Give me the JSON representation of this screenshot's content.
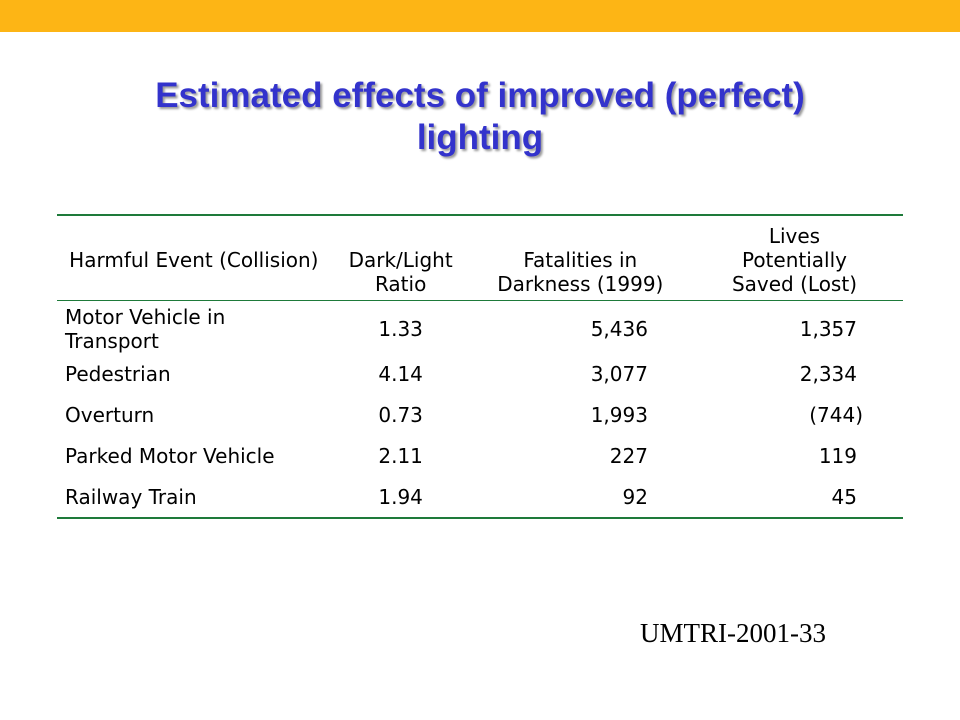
{
  "slide": {
    "title_line1": "Estimated effects of improved (perfect)",
    "title_line2": "lighting",
    "accent_color": "#FDB515",
    "title_color": "#3333CC",
    "rule_color": "#1E7A3A",
    "source": "UMTRI-2001-33"
  },
  "table": {
    "headers": {
      "event": "Harmful Event (Collision)",
      "ratio_1": "Dark/Light",
      "ratio_2": "Ratio",
      "fatal_1": "Fatalities in",
      "fatal_2": "Darkness (1999)",
      "lives_1": "Lives",
      "lives_2": "Potentially",
      "lives_3": "Saved (Lost)"
    },
    "rows": [
      {
        "event": "Motor Vehicle in Transport",
        "ratio": "1.33",
        "fatalities": "5,436",
        "lives": "1,357"
      },
      {
        "event": "Pedestrian",
        "ratio": "4.14",
        "fatalities": "3,077",
        "lives": "2,334"
      },
      {
        "event": "Overturn",
        "ratio": "0.73",
        "fatalities": "1,993",
        "lives": "(744)"
      },
      {
        "event": "Parked Motor Vehicle",
        "ratio": "2.11",
        "fatalities": "227",
        "lives": "119"
      },
      {
        "event": "Railway Train",
        "ratio": "1.94",
        "fatalities": "92",
        "lives": "45"
      }
    ]
  }
}
